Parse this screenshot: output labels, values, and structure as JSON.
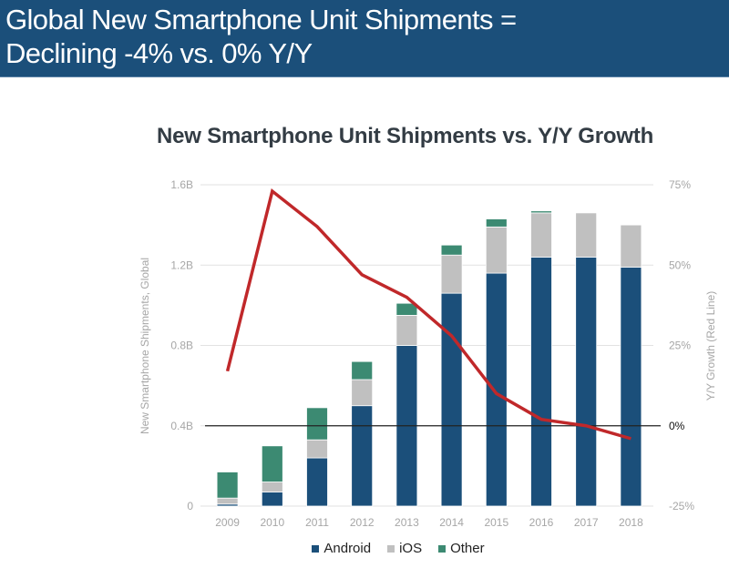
{
  "header": {
    "line1": "Global New Smartphone Unit Shipments =",
    "line2": "Declining -4% vs. 0% Y/Y"
  },
  "colors": {
    "header_bg": "#1b4f7a",
    "android": "#1b4f7a",
    "ios": "#c0c0c0",
    "other": "#3c8a72",
    "growth_line": "#c0282a",
    "grid": "#e2e2e2",
    "zero_line": "#222222"
  },
  "chart_data": {
    "type": "bar",
    "subtype": "stacked-bar-with-line-secondary-axis",
    "title": "New Smartphone Unit Shipments vs. Y/Y Growth",
    "xlabel": "",
    "ylabel": "New Smartphone Shipments, Global",
    "y2label": "Y/Y Growth (Red Line)",
    "categories": [
      "2009",
      "2010",
      "2011",
      "2012",
      "2013",
      "2014",
      "2015",
      "2016",
      "2017",
      "2018"
    ],
    "series": [
      {
        "name": "Android",
        "axis": "left",
        "unit": "B",
        "values": [
          0.01,
          0.07,
          0.24,
          0.5,
          0.8,
          1.06,
          1.16,
          1.24,
          1.24,
          1.19
        ]
      },
      {
        "name": "iOS",
        "axis": "left",
        "unit": "B",
        "values": [
          0.03,
          0.05,
          0.09,
          0.13,
          0.15,
          0.19,
          0.23,
          0.22,
          0.22,
          0.21
        ]
      },
      {
        "name": "Other",
        "axis": "left",
        "unit": "B",
        "values": [
          0.13,
          0.18,
          0.16,
          0.09,
          0.06,
          0.05,
          0.04,
          0.01,
          0.0,
          0.0
        ]
      },
      {
        "name": "Y/Y Growth",
        "axis": "right",
        "type": "line",
        "unit": "%",
        "values": [
          17,
          73,
          62,
          47,
          40,
          28,
          10,
          2,
          0,
          -4
        ]
      }
    ],
    "ylim": [
      0,
      1.6
    ],
    "yticks": [
      {
        "value": 0,
        "label": "0"
      },
      {
        "value": 0.4,
        "label": "0.4B"
      },
      {
        "value": 0.8,
        "label": "0.8B"
      },
      {
        "value": 1.2,
        "label": "1.2B"
      },
      {
        "value": 1.6,
        "label": "1.6B"
      }
    ],
    "y2lim": [
      -25,
      75
    ],
    "y2ticks": [
      {
        "value": -25,
        "label": "-25%"
      },
      {
        "value": 0,
        "label": "0%"
      },
      {
        "value": 25,
        "label": "25%"
      },
      {
        "value": 50,
        "label": "50%"
      },
      {
        "value": 75,
        "label": "75%"
      }
    ],
    "grid": true,
    "reference_line": {
      "axis": "right",
      "value": 0
    },
    "legend": {
      "position": "bottom",
      "entries": [
        {
          "name": "Android",
          "color": "#1b4f7a"
        },
        {
          "name": "iOS",
          "color": "#c0c0c0"
        },
        {
          "name": "Other",
          "color": "#3c8a72"
        }
      ]
    }
  }
}
